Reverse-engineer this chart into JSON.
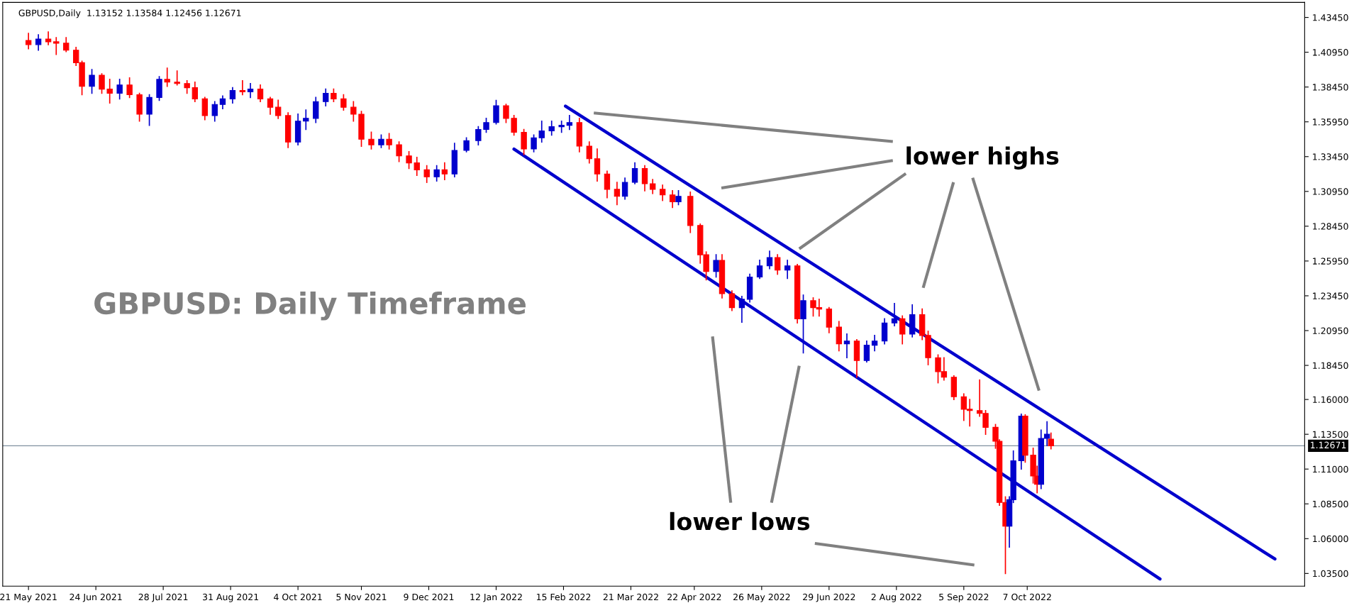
{
  "chart_data": {
    "type": "candlestick",
    "title": "GBPUSD: Daily Timeframe",
    "subtitle": "GBPUSD,Daily  1.13152 1.13584 1.12456 1.12671",
    "x": [
      "2021-05-21",
      "2021-05-26",
      "2021-05-31",
      "2021-06-04",
      "2021-06-09",
      "2021-06-14",
      "2021-06-17",
      "2021-06-22",
      "2021-06-27",
      "2021-07-01",
      "2021-07-06",
      "2021-07-11",
      "2021-07-16",
      "2021-07-21",
      "2021-07-26",
      "2021-07-30",
      "2021-08-04",
      "2021-08-09",
      "2021-08-13",
      "2021-08-18",
      "2021-08-23",
      "2021-08-27",
      "2021-09-01",
      "2021-09-06",
      "2021-09-10",
      "2021-09-15",
      "2021-09-20",
      "2021-09-24",
      "2021-09-29",
      "2021-10-04",
      "2021-10-08",
      "2021-10-13",
      "2021-10-18",
      "2021-10-22",
      "2021-10-27",
      "2021-11-01",
      "2021-11-05",
      "2021-11-10",
      "2021-11-15",
      "2021-11-19",
      "2021-11-24",
      "2021-11-29",
      "2021-12-03",
      "2021-12-08",
      "2021-12-13",
      "2021-12-17",
      "2021-12-22",
      "2021-12-28",
      "2022-01-03",
      "2022-01-07",
      "2022-01-12",
      "2022-01-17",
      "2022-01-21",
      "2022-01-26",
      "2022-01-31",
      "2022-02-04",
      "2022-02-09",
      "2022-02-14",
      "2022-02-18",
      "2022-02-23",
      "2022-02-28",
      "2022-03-04",
      "2022-03-09",
      "2022-03-14",
      "2022-03-18",
      "2022-03-23",
      "2022-03-28",
      "2022-04-01",
      "2022-04-06",
      "2022-04-11",
      "2022-04-14",
      "2022-04-20",
      "2022-04-25",
      "2022-04-28",
      "2022-05-03",
      "2022-05-06",
      "2022-05-11",
      "2022-05-16",
      "2022-05-20",
      "2022-05-25",
      "2022-05-30",
      "2022-06-03",
      "2022-06-08",
      "2022-06-13",
      "2022-06-16",
      "2022-06-21",
      "2022-06-24",
      "2022-06-29",
      "2022-07-04",
      "2022-07-08",
      "2022-07-13",
      "2022-07-18",
      "2022-07-22",
      "2022-07-27",
      "2022-08-01",
      "2022-08-05",
      "2022-08-10",
      "2022-08-15",
      "2022-08-18",
      "2022-08-23",
      "2022-08-26",
      "2022-08-31",
      "2022-09-05",
      "2022-09-08",
      "2022-09-13",
      "2022-09-16",
      "2022-09-21",
      "2022-09-23",
      "2022-09-26",
      "2022-09-28",
      "2022-09-30",
      "2022-10-04",
      "2022-10-06",
      "2022-10-10",
      "2022-10-12",
      "2022-10-14",
      "2022-10-17",
      "2022-10-19"
    ],
    "ohlc": [
      [
        1.418,
        1.423,
        1.412,
        1.415
      ],
      [
        1.415,
        1.422,
        1.411,
        1.419
      ],
      [
        1.419,
        1.424,
        1.415,
        1.417
      ],
      [
        1.417,
        1.42,
        1.408,
        1.416
      ],
      [
        1.416,
        1.42,
        1.41,
        1.411
      ],
      [
        1.411,
        1.413,
        1.4,
        1.402
      ],
      [
        1.402,
        1.403,
        1.379,
        1.385
      ],
      [
        1.385,
        1.397,
        1.38,
        1.393
      ],
      [
        1.393,
        1.394,
        1.38,
        1.383
      ],
      [
        1.383,
        1.39,
        1.373,
        1.38
      ],
      [
        1.38,
        1.39,
        1.376,
        1.386
      ],
      [
        1.386,
        1.391,
        1.377,
        1.379
      ],
      [
        1.379,
        1.38,
        1.36,
        1.365
      ],
      [
        1.365,
        1.379,
        1.357,
        1.377
      ],
      [
        1.377,
        1.392,
        1.375,
        1.39
      ],
      [
        1.39,
        1.398,
        1.385,
        1.388
      ],
      [
        1.388,
        1.396,
        1.386,
        1.387
      ],
      [
        1.387,
        1.389,
        1.38,
        1.384
      ],
      [
        1.384,
        1.388,
        1.374,
        1.376
      ],
      [
        1.376,
        1.377,
        1.361,
        1.364
      ],
      [
        1.364,
        1.374,
        1.36,
        1.372
      ],
      [
        1.372,
        1.378,
        1.369,
        1.376
      ],
      [
        1.376,
        1.384,
        1.373,
        1.382
      ],
      [
        1.382,
        1.389,
        1.379,
        1.381
      ],
      [
        1.381,
        1.387,
        1.377,
        1.383
      ],
      [
        1.383,
        1.386,
        1.374,
        1.376
      ],
      [
        1.376,
        1.377,
        1.365,
        1.37
      ],
      [
        1.37,
        1.375,
        1.362,
        1.364
      ],
      [
        1.364,
        1.366,
        1.341,
        1.345
      ],
      [
        1.345,
        1.365,
        1.343,
        1.36
      ],
      [
        1.36,
        1.368,
        1.354,
        1.362
      ],
      [
        1.362,
        1.377,
        1.359,
        1.374
      ],
      [
        1.374,
        1.383,
        1.371,
        1.38
      ],
      [
        1.38,
        1.383,
        1.374,
        1.376
      ],
      [
        1.376,
        1.379,
        1.368,
        1.37
      ],
      [
        1.37,
        1.374,
        1.36,
        1.365
      ],
      [
        1.365,
        1.367,
        1.342,
        1.347
      ],
      [
        1.347,
        1.352,
        1.34,
        1.343
      ],
      [
        1.343,
        1.35,
        1.341,
        1.347
      ],
      [
        1.347,
        1.351,
        1.34,
        1.343
      ],
      [
        1.343,
        1.345,
        1.331,
        1.335
      ],
      [
        1.335,
        1.338,
        1.326,
        1.33
      ],
      [
        1.33,
        1.334,
        1.321,
        1.325
      ],
      [
        1.325,
        1.328,
        1.316,
        1.32
      ],
      [
        1.32,
        1.328,
        1.317,
        1.325
      ],
      [
        1.325,
        1.33,
        1.318,
        1.322
      ],
      [
        1.322,
        1.344,
        1.32,
        1.339
      ],
      [
        1.339,
        1.348,
        1.338,
        1.346
      ],
      [
        1.346,
        1.356,
        1.343,
        1.354
      ],
      [
        1.354,
        1.362,
        1.352,
        1.359
      ],
      [
        1.359,
        1.3749,
        1.358,
        1.371
      ],
      [
        1.371,
        1.372,
        1.359,
        1.362
      ],
      [
        1.362,
        1.364,
        1.35,
        1.352
      ],
      [
        1.352,
        1.354,
        1.336,
        1.34
      ],
      [
        1.34,
        1.35,
        1.338,
        1.348
      ],
      [
        1.348,
        1.36,
        1.345,
        1.353
      ],
      [
        1.353,
        1.36,
        1.35,
        1.356
      ],
      [
        1.356,
        1.36,
        1.352,
        1.357
      ],
      [
        1.357,
        1.364,
        1.354,
        1.359
      ],
      [
        1.359,
        1.362,
        1.338,
        1.342
      ],
      [
        1.342,
        1.345,
        1.33,
        1.333
      ],
      [
        1.333,
        1.34,
        1.317,
        1.322
      ],
      [
        1.322,
        1.324,
        1.305,
        1.311
      ],
      [
        1.311,
        1.316,
        1.3,
        1.306
      ],
      [
        1.306,
        1.319,
        1.304,
        1.316
      ],
      [
        1.316,
        1.33,
        1.315,
        1.326
      ],
      [
        1.326,
        1.328,
        1.31,
        1.315
      ],
      [
        1.315,
        1.318,
        1.308,
        1.311
      ],
      [
        1.311,
        1.314,
        1.303,
        1.307
      ],
      [
        1.307,
        1.31,
        1.298,
        1.302
      ],
      [
        1.302,
        1.31,
        1.3,
        1.306
      ],
      [
        1.306,
        1.309,
        1.28,
        1.285
      ],
      [
        1.285,
        1.286,
        1.258,
        1.264
      ],
      [
        1.264,
        1.266,
        1.246,
        1.252
      ],
      [
        1.252,
        1.264,
        1.248,
        1.26
      ],
      [
        1.26,
        1.264,
        1.233,
        1.236
      ],
      [
        1.236,
        1.238,
        1.224,
        1.226
      ],
      [
        1.226,
        1.234,
        1.2155,
        1.232
      ],
      [
        1.232,
        1.25,
        1.23,
        1.248
      ],
      [
        1.248,
        1.26,
        1.247,
        1.256
      ],
      [
        1.256,
        1.2665,
        1.254,
        1.262
      ],
      [
        1.262,
        1.264,
        1.25,
        1.253
      ],
      [
        1.253,
        1.26,
        1.247,
        1.256
      ],
      [
        1.256,
        1.257,
        1.215,
        1.218
      ],
      [
        1.218,
        1.235,
        1.1935,
        1.231
      ],
      [
        1.231,
        1.233,
        1.22,
        1.226
      ],
      [
        1.226,
        1.232,
        1.22,
        1.225
      ],
      [
        1.225,
        1.226,
        1.208,
        1.212
      ],
      [
        1.212,
        1.216,
        1.195,
        1.2
      ],
      [
        1.2,
        1.207,
        1.19,
        1.202
      ],
      [
        1.202,
        1.203,
        1.176,
        1.188
      ],
      [
        1.188,
        1.202,
        1.187,
        1.199
      ],
      [
        1.199,
        1.206,
        1.195,
        1.202
      ],
      [
        1.202,
        1.218,
        1.2,
        1.215
      ],
      [
        1.215,
        1.229,
        1.213,
        1.218
      ],
      [
        1.218,
        1.22,
        1.2,
        1.207
      ],
      [
        1.207,
        1.228,
        1.205,
        1.221
      ],
      [
        1.221,
        1.225,
        1.203,
        1.206
      ],
      [
        1.206,
        1.209,
        1.185,
        1.19
      ],
      [
        1.19,
        1.192,
        1.172,
        1.18
      ],
      [
        1.18,
        1.19,
        1.174,
        1.176
      ],
      [
        1.176,
        1.177,
        1.16,
        1.162
      ],
      [
        1.162,
        1.164,
        1.145,
        1.153
      ],
      [
        1.153,
        1.16,
        1.141,
        1.152
      ],
      [
        1.152,
        1.174,
        1.148,
        1.15
      ],
      [
        1.15,
        1.152,
        1.135,
        1.14
      ],
      [
        1.14,
        1.142,
        1.125,
        1.13
      ],
      [
        1.13,
        1.131,
        1.084,
        1.086
      ],
      [
        1.086,
        1.09,
        1.035,
        1.069
      ],
      [
        1.069,
        1.09,
        1.054,
        1.088
      ],
      [
        1.088,
        1.123,
        1.086,
        1.116
      ],
      [
        1.116,
        1.1495,
        1.11,
        1.148
      ],
      [
        1.148,
        1.149,
        1.115,
        1.12
      ],
      [
        1.12,
        1.125,
        1.1,
        1.105
      ],
      [
        1.105,
        1.112,
        1.093,
        1.099
      ],
      [
        1.099,
        1.138,
        1.096,
        1.132
      ],
      [
        1.132,
        1.144,
        1.127,
        1.135
      ],
      [
        1.13152,
        1.13584,
        1.12456,
        1.12671
      ]
    ],
    "colors": [
      "#ff0000",
      "#0000cd",
      "#ff0000",
      "#ff0000",
      "#ff0000",
      "#ff0000",
      "#ff0000",
      "#0000cd",
      "#ff0000",
      "#ff0000",
      "#0000cd",
      "#ff0000",
      "#ff0000",
      "#0000cd",
      "#0000cd",
      "#ff0000",
      "#ff0000",
      "#ff0000",
      "#ff0000",
      "#ff0000",
      "#0000cd",
      "#0000cd",
      "#0000cd",
      "#ff0000",
      "#0000cd",
      "#ff0000",
      "#ff0000",
      "#ff0000",
      "#ff0000",
      "#0000cd",
      "#0000cd",
      "#0000cd",
      "#0000cd",
      "#ff0000",
      "#ff0000",
      "#ff0000",
      "#ff0000",
      "#ff0000",
      "#0000cd",
      "#ff0000",
      "#ff0000",
      "#ff0000",
      "#ff0000",
      "#ff0000",
      "#0000cd",
      "#ff0000",
      "#0000cd",
      "#0000cd",
      "#0000cd",
      "#0000cd",
      "#0000cd",
      "#ff0000",
      "#ff0000",
      "#ff0000",
      "#0000cd",
      "#0000cd",
      "#0000cd",
      "#0000cd",
      "#0000cd",
      "#ff0000",
      "#ff0000",
      "#ff0000",
      "#ff0000",
      "#ff0000",
      "#0000cd",
      "#0000cd",
      "#ff0000",
      "#ff0000",
      "#ff0000",
      "#ff0000",
      "#0000cd",
      "#ff0000",
      "#ff0000",
      "#ff0000",
      "#0000cd",
      "#ff0000",
      "#ff0000",
      "#0000cd",
      "#0000cd",
      "#0000cd",
      "#0000cd",
      "#ff0000",
      "#0000cd",
      "#ff0000",
      "#0000cd",
      "#ff0000",
      "#ff0000",
      "#ff0000",
      "#ff0000",
      "#0000cd",
      "#ff0000",
      "#0000cd",
      "#0000cd",
      "#0000cd",
      "#0000cd",
      "#ff0000",
      "#0000cd",
      "#ff0000",
      "#ff0000",
      "#ff0000",
      "#ff0000",
      "#ff0000",
      "#ff0000",
      "#ff0000",
      "#ff0000",
      "#ff0000",
      "#ff0000",
      "#ff0000",
      "#ff0000",
      "#0000cd",
      "#0000cd",
      "#0000cd",
      "#ff0000",
      "#ff0000",
      "#ff0000",
      "#0000cd",
      "#0000cd",
      "#ff0000"
    ],
    "series": [
      {
        "type": "line",
        "color": "#0000cd",
        "x": [
          "2022-02-16",
          "2023-02-09"
        ],
        "values": [
          1.3708,
          1.0454
        ]
      },
      {
        "type": "line",
        "color": "#0000cd",
        "x": [
          "2022-01-21",
          "2022-12-13"
        ],
        "values": [
          1.3399,
          1.031
        ]
      }
    ],
    "ref_lines": [
      {
        "axis": "y",
        "value": 1.12671,
        "label": "1.12671",
        "color": "#8090a0"
      }
    ],
    "annotations": [
      "lower highs",
      "lower lows"
    ],
    "xlim": [
      "2021-05-08",
      "2023-02-24"
    ],
    "xticks": [
      {
        "value": "2021-05-21",
        "label": "21 May 2021"
      },
      {
        "value": "2021-06-24",
        "label": "24 Jun 2021"
      },
      {
        "value": "2021-07-28",
        "label": "28 Jul 2021"
      },
      {
        "value": "2021-08-31",
        "label": "31 Aug 2021"
      },
      {
        "value": "2021-10-04",
        "label": "4 Oct 2021"
      },
      {
        "value": "2021-11-05",
        "label": "5 Nov 2021"
      },
      {
        "value": "2021-12-09",
        "label": "9 Dec 2021"
      },
      {
        "value": "2022-01-12",
        "label": "12 Jan 2022"
      },
      {
        "value": "2022-02-15",
        "label": "15 Feb 2022"
      },
      {
        "value": "2022-03-21",
        "label": "21 Mar 2022"
      },
      {
        "value": "2022-04-22",
        "label": "22 Apr 2022"
      },
      {
        "value": "2022-05-26",
        "label": "26 May 2022"
      },
      {
        "value": "2022-06-29",
        "label": "29 Jun 2022"
      },
      {
        "value": "2022-08-02",
        "label": "2 Aug 2022"
      },
      {
        "value": "2022-09-05",
        "label": "5 Sep 2022"
      },
      {
        "value": "2022-10-07",
        "label": "7 Oct 2022"
      }
    ],
    "ylim": [
      1.0259,
      1.4453
    ],
    "yticks": [
      {
        "value": 1.4345,
        "label": "1.43450"
      },
      {
        "value": 1.4095,
        "label": "1.40950"
      },
      {
        "value": 1.3845,
        "label": "1.38450"
      },
      {
        "value": 1.3595,
        "label": "1.35950"
      },
      {
        "value": 1.3345,
        "label": "1.33450"
      },
      {
        "value": 1.3095,
        "label": "1.30950"
      },
      {
        "value": 1.2845,
        "label": "1.28450"
      },
      {
        "value": 1.2595,
        "label": "1.25950"
      },
      {
        "value": 1.2345,
        "label": "1.23450"
      },
      {
        "value": 1.2095,
        "label": "1.20950"
      },
      {
        "value": 1.1845,
        "label": "1.18450"
      },
      {
        "value": 1.16,
        "label": "1.16000"
      },
      {
        "value": 1.135,
        "label": "1.13500"
      },
      {
        "value": 1.11,
        "label": "1.11000"
      },
      {
        "value": 1.085,
        "label": "1.08500"
      },
      {
        "value": 1.06,
        "label": "1.06000"
      },
      {
        "value": 1.035,
        "label": "1.03500"
      }
    ],
    "grid": false,
    "legend": false
  }
}
